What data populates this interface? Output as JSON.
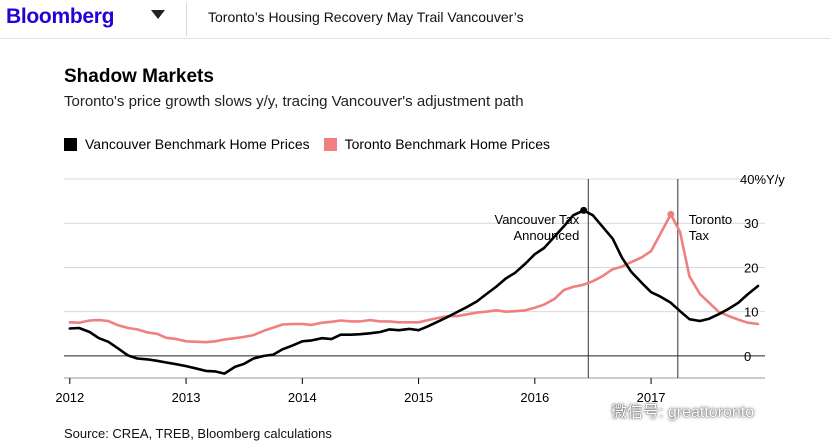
{
  "header": {
    "brand": "Bloomberg",
    "article_title": "Toronto’s Housing Recovery May Trail Vancouver’s"
  },
  "colors": {
    "brand": "#2800d7",
    "vancouver": "#000000",
    "toronto": "#f08080",
    "grid": "#d9d9d9",
    "zero_line": "#222222"
  },
  "watermark": {
    "text": "微信号: greattoronto",
    "icon": "wechat-icon"
  },
  "source": "Source: CREA, TREB, Bloomberg calculations",
  "chart_data": {
    "type": "line",
    "title": "Shadow Markets",
    "subtitle": "Toronto's price growth slows y/y, tracing Vancouver's adjustment path",
    "ylabel": "",
    "y_unit_label": "40%Y/y",
    "ylim": [
      -5,
      40
    ],
    "xlim": [
      2011.95,
      2017.98
    ],
    "y_ticks": [
      {
        "value": 30,
        "label": "30"
      },
      {
        "value": 20,
        "label": "20"
      },
      {
        "value": 10,
        "label": "10"
      },
      {
        "value": 0,
        "label": "0"
      }
    ],
    "x_ticks": [
      {
        "value": 2012,
        "label": "2012"
      },
      {
        "value": 2013,
        "label": "2013"
      },
      {
        "value": 2014,
        "label": "2014"
      },
      {
        "value": 2015,
        "label": "2015"
      },
      {
        "value": 2016,
        "label": "2016"
      },
      {
        "value": 2017,
        "label": "2017"
      }
    ],
    "grid": true,
    "legend": "top-left",
    "series": [
      {
        "name": "Vancouver Benchmark Home Prices",
        "color": "#000000",
        "x": [
          2012.0,
          2012.08,
          2012.17,
          2012.25,
          2012.33,
          2012.42,
          2012.5,
          2012.58,
          2012.67,
          2012.75,
          2012.83,
          2012.92,
          2013.0,
          2013.08,
          2013.17,
          2013.25,
          2013.33,
          2013.42,
          2013.5,
          2013.58,
          2013.67,
          2013.75,
          2013.83,
          2013.92,
          2014.0,
          2014.08,
          2014.17,
          2014.25,
          2014.33,
          2014.42,
          2014.5,
          2014.58,
          2014.67,
          2014.75,
          2014.83,
          2014.92,
          2015.0,
          2015.08,
          2015.17,
          2015.25,
          2015.33,
          2015.42,
          2015.5,
          2015.58,
          2015.67,
          2015.75,
          2015.83,
          2015.92,
          2016.0,
          2016.08,
          2016.17,
          2016.25,
          2016.33,
          2016.42,
          2016.5,
          2016.58,
          2016.67,
          2016.75,
          2016.83,
          2016.92,
          2017.0,
          2017.08,
          2017.17,
          2017.25,
          2017.33,
          2017.42,
          2017.5,
          2017.58,
          2017.67,
          2017.75,
          2017.83,
          2017.92
        ],
        "values": [
          6.2,
          6.3,
          5.4,
          4.0,
          3.2,
          1.6,
          0.1,
          -0.6,
          -0.8,
          -1.1,
          -1.5,
          -1.9,
          -2.3,
          -2.8,
          -3.4,
          -3.5,
          -4.0,
          -2.5,
          -1.8,
          -0.6,
          0.0,
          0.3,
          1.5,
          2.4,
          3.3,
          3.5,
          4.0,
          3.8,
          4.8,
          4.8,
          4.9,
          5.1,
          5.4,
          6.0,
          5.8,
          6.1,
          5.8,
          6.7,
          7.8,
          8.8,
          9.9,
          11.1,
          12.3,
          13.9,
          15.7,
          17.5,
          18.8,
          20.9,
          23.0,
          24.4,
          27.0,
          29.3,
          31.8,
          32.9,
          31.8,
          29.3,
          26.5,
          22.2,
          19.0,
          16.5,
          14.4,
          13.4,
          12.0,
          10.1,
          8.3,
          7.9,
          8.4,
          9.4,
          10.7,
          12.0,
          13.9,
          15.8
        ]
      },
      {
        "name": "Toronto Benchmark Home Prices",
        "color": "#f08080",
        "x": [
          2012.0,
          2012.08,
          2012.17,
          2012.25,
          2012.33,
          2012.42,
          2012.5,
          2012.58,
          2012.67,
          2012.75,
          2012.83,
          2012.92,
          2013.0,
          2013.08,
          2013.17,
          2013.25,
          2013.33,
          2013.42,
          2013.5,
          2013.58,
          2013.67,
          2013.75,
          2013.83,
          2013.92,
          2014.0,
          2014.08,
          2014.17,
          2014.25,
          2014.33,
          2014.42,
          2014.5,
          2014.58,
          2014.67,
          2014.75,
          2014.83,
          2014.92,
          2015.0,
          2015.08,
          2015.17,
          2015.25,
          2015.33,
          2015.42,
          2015.5,
          2015.58,
          2015.67,
          2015.75,
          2015.83,
          2015.92,
          2016.0,
          2016.08,
          2016.17,
          2016.25,
          2016.33,
          2016.42,
          2016.5,
          2016.58,
          2016.67,
          2016.75,
          2016.83,
          2016.92,
          2017.0,
          2017.08,
          2017.17,
          2017.25,
          2017.33,
          2017.42,
          2017.5,
          2017.58,
          2017.67,
          2017.75,
          2017.83,
          2017.92
        ],
        "values": [
          7.6,
          7.5,
          8.0,
          8.1,
          7.9,
          6.9,
          6.3,
          6.0,
          5.3,
          5.0,
          4.1,
          3.8,
          3.3,
          3.2,
          3.1,
          3.3,
          3.7,
          4.0,
          4.3,
          4.7,
          5.7,
          6.4,
          7.1,
          7.2,
          7.2,
          7.0,
          7.5,
          7.7,
          8.0,
          7.8,
          7.8,
          8.1,
          7.8,
          7.8,
          7.6,
          7.6,
          7.6,
          8.1,
          8.6,
          9.0,
          9.0,
          9.4,
          9.8,
          10.0,
          10.3,
          10.0,
          10.1,
          10.3,
          10.9,
          11.6,
          12.9,
          14.9,
          15.6,
          16.1,
          16.9,
          18.0,
          19.6,
          20.2,
          21.2,
          22.3,
          23.7,
          27.6,
          32.0,
          28.0,
          18.0,
          14.0,
          12.0,
          10.0,
          9.0,
          8.2,
          7.5,
          7.2
        ]
      }
    ],
    "annotations": [
      {
        "x": 2016.46,
        "lines": [
          "Vancouver Tax",
          "Announced"
        ],
        "align": "right"
      },
      {
        "x": 2017.23,
        "lines": [
          "Toronto",
          "Tax"
        ],
        "align": "left"
      }
    ]
  }
}
